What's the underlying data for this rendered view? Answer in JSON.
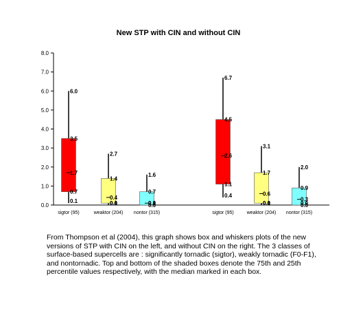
{
  "chart_data": {
    "type": "box",
    "title": "New STP with CIN and without CIN",
    "xlabel": "",
    "ylabel": "",
    "ylim": [
      0,
      8
    ],
    "yticks": [
      "0.0",
      "1.0",
      "2.0",
      "3.0",
      "4.0",
      "5.0",
      "6.0",
      "7.0",
      "8.0"
    ],
    "grid": false,
    "groups": [
      {
        "boxes": [
          {
            "category": "sigtor (95)",
            "color": "#ff0000",
            "min": 0.1,
            "q1": 0.7,
            "median": 1.7,
            "q3": 3.5,
            "max": 6.0,
            "labels": {
              "min": "0.1",
              "q1": "0.7",
              "median": "1.7",
              "q3": "3.5",
              "max": "6.0"
            }
          },
          {
            "category": "weaktor (204)",
            "color": "#ffff80",
            "min": 0.0,
            "q1": 0.1,
            "median": 0.4,
            "q3": 1.4,
            "max": 2.7,
            "labels": {
              "min": "0.0",
              "q1": "0.1",
              "median": "0.4",
              "q3": "1.4",
              "max": "2.7"
            }
          },
          {
            "category": "nontor (315)",
            "color": "#80ffff",
            "min": 0.0,
            "q1": 0.0,
            "median": 0.1,
            "q3": 0.7,
            "max": 1.6,
            "labels": {
              "min": "0.0",
              "q1": "0.0",
              "median": "0.1",
              "q3": "0.7",
              "max": "1.6"
            }
          }
        ]
      },
      {
        "boxes": [
          {
            "category": "sigtor (95)",
            "color": "#ff0000",
            "min": 0.4,
            "q1": 1.1,
            "median": 2.6,
            "q3": 4.5,
            "max": 6.7,
            "labels": {
              "min": "0.4",
              "q1": "1.1",
              "median": "2.6",
              "q3": "4.5",
              "max": "6.7"
            }
          },
          {
            "category": "weaktor (204)",
            "color": "#ffff80",
            "min": 0.0,
            "q1": 0.1,
            "median": 0.6,
            "q3": 1.7,
            "max": 3.1,
            "labels": {
              "min": "0.0",
              "q1": "0.1",
              "median": "0.6",
              "q3": "1.7",
              "max": "3.1"
            }
          },
          {
            "category": "nontor (315)",
            "color": "#80ffff",
            "min": 0.0,
            "q1": 0.0,
            "median": 0.3,
            "q3": 0.9,
            "max": 2.0,
            "labels": {
              "min": "0.0",
              "q1": "0.0",
              "median": "0.3",
              "q3": "0.9",
              "max": "2.0"
            }
          }
        ]
      }
    ]
  },
  "caption": "From Thompson et al (2004), this graph shows box and whiskers plots of the new versions of STP with CIN on the left, and without CIN on the right. The 3 classes of surface-based supercells are : significantly tornadic (sigtor), weakly tornadic (F0-F1), and nontornadic.  Top and bottom of the shaded boxes denote the 75th and 25th percentile values respectively, with the median marked in each box."
}
